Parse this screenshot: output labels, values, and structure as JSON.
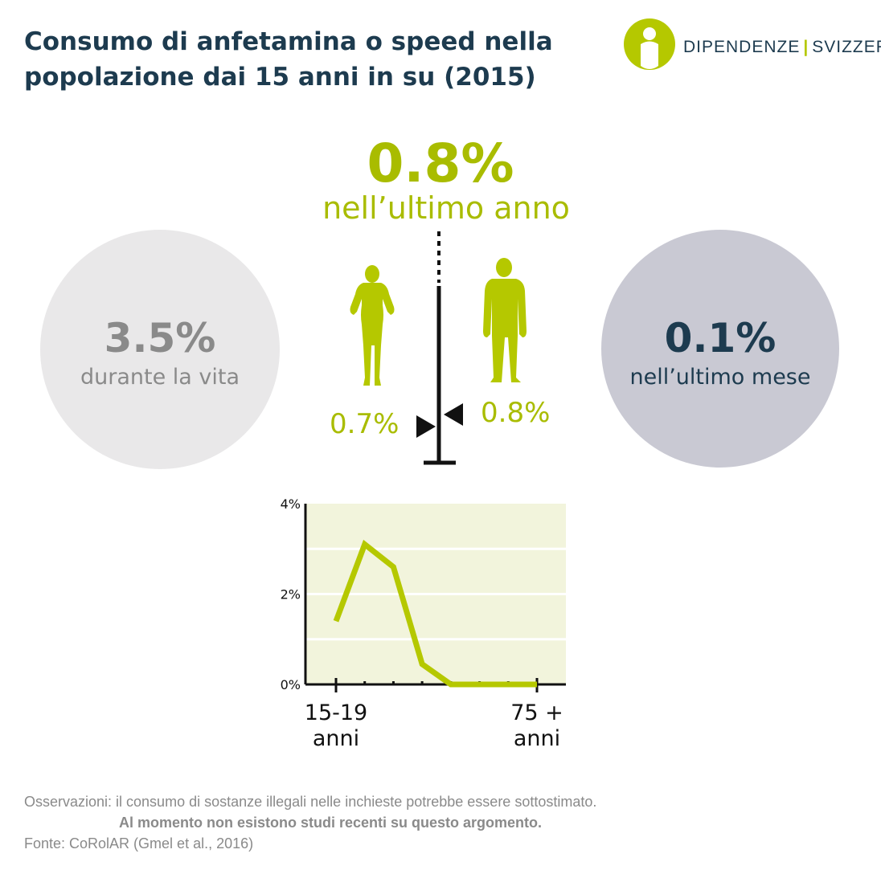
{
  "title": "Consumo di anfetamina o speed nella popolazione dai 15 anni in su (2015)",
  "logo": {
    "word1": "DIPENDENZE",
    "word2": "SVIZZERA",
    "icon": "person-in-circle-logo-icon"
  },
  "headline": {
    "value": "0.8%",
    "label": "nell’ultimo anno"
  },
  "lifetime": {
    "value": "3.5%",
    "label": "durante la vita"
  },
  "last_month": {
    "value": "0.1%",
    "label": "nell’ultimo mese"
  },
  "gender": {
    "female": "0.7%",
    "male": "0.8%",
    "female_icon": "woman-silhouette-icon",
    "male_icon": "man-silhouette-icon"
  },
  "colors": {
    "accent": "#a9bc00",
    "navy": "#1d3b4f",
    "gray": "#8a8a8a",
    "plot_bg": "#f2f4dc"
  },
  "chart_data": {
    "type": "line",
    "ylim": [
      0,
      4
    ],
    "yticks": [
      0,
      2,
      4
    ],
    "ytick_labels": [
      "0%",
      "2%",
      "4%"
    ],
    "xlabels": {
      "first": [
        "15-19",
        "anni"
      ],
      "last": [
        "75 +",
        "anni"
      ]
    },
    "series": [
      {
        "values": [
          1.4,
          3.1,
          2.6,
          0.45,
          0,
          0,
          0,
          0
        ]
      }
    ]
  },
  "footer": {
    "note": "Osservazioni: il consumo di sostanze illegali nelle inchieste potrebbe essere sottostimato.",
    "note_bold": "Al momento non esistono studi recenti su questo argomento.",
    "source": "Fonte: CoRolAR (Gmel et al., 2016)"
  }
}
